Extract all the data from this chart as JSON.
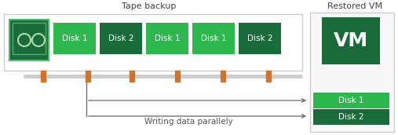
{
  "title_tape": "Tape backup",
  "title_restored": "Restored VM",
  "disk_labels_tape": [
    "Disk 1",
    "Disk 2",
    "Disk 1",
    "Disk 1",
    "Disk 2"
  ],
  "disk_colors_tape": [
    "#2db84e",
    "#1a6b3a",
    "#2db84e",
    "#2db84e",
    "#1a6b3a"
  ],
  "disk_colors_restored": [
    "#2db84e",
    "#1a6b3a"
  ],
  "disk_labels_restored": [
    "Disk 1",
    "Disk 2"
  ],
  "vm_color": "#1a6b3a",
  "tape_bg": "#ffffff",
  "tape_border": "#cccccc",
  "restored_bg": "#f8f8f8",
  "restored_border": "#cccccc",
  "tape_icon_border": "#4db870",
  "tape_icon_bg": "#1a6b3a",
  "orange_bar_color": "#d4722a",
  "line_color": "#cccccc",
  "arrow_color": "#666666",
  "annotation": "Writing data parallely",
  "fig_width": 5.07,
  "fig_height": 1.72,
  "dpi": 100
}
